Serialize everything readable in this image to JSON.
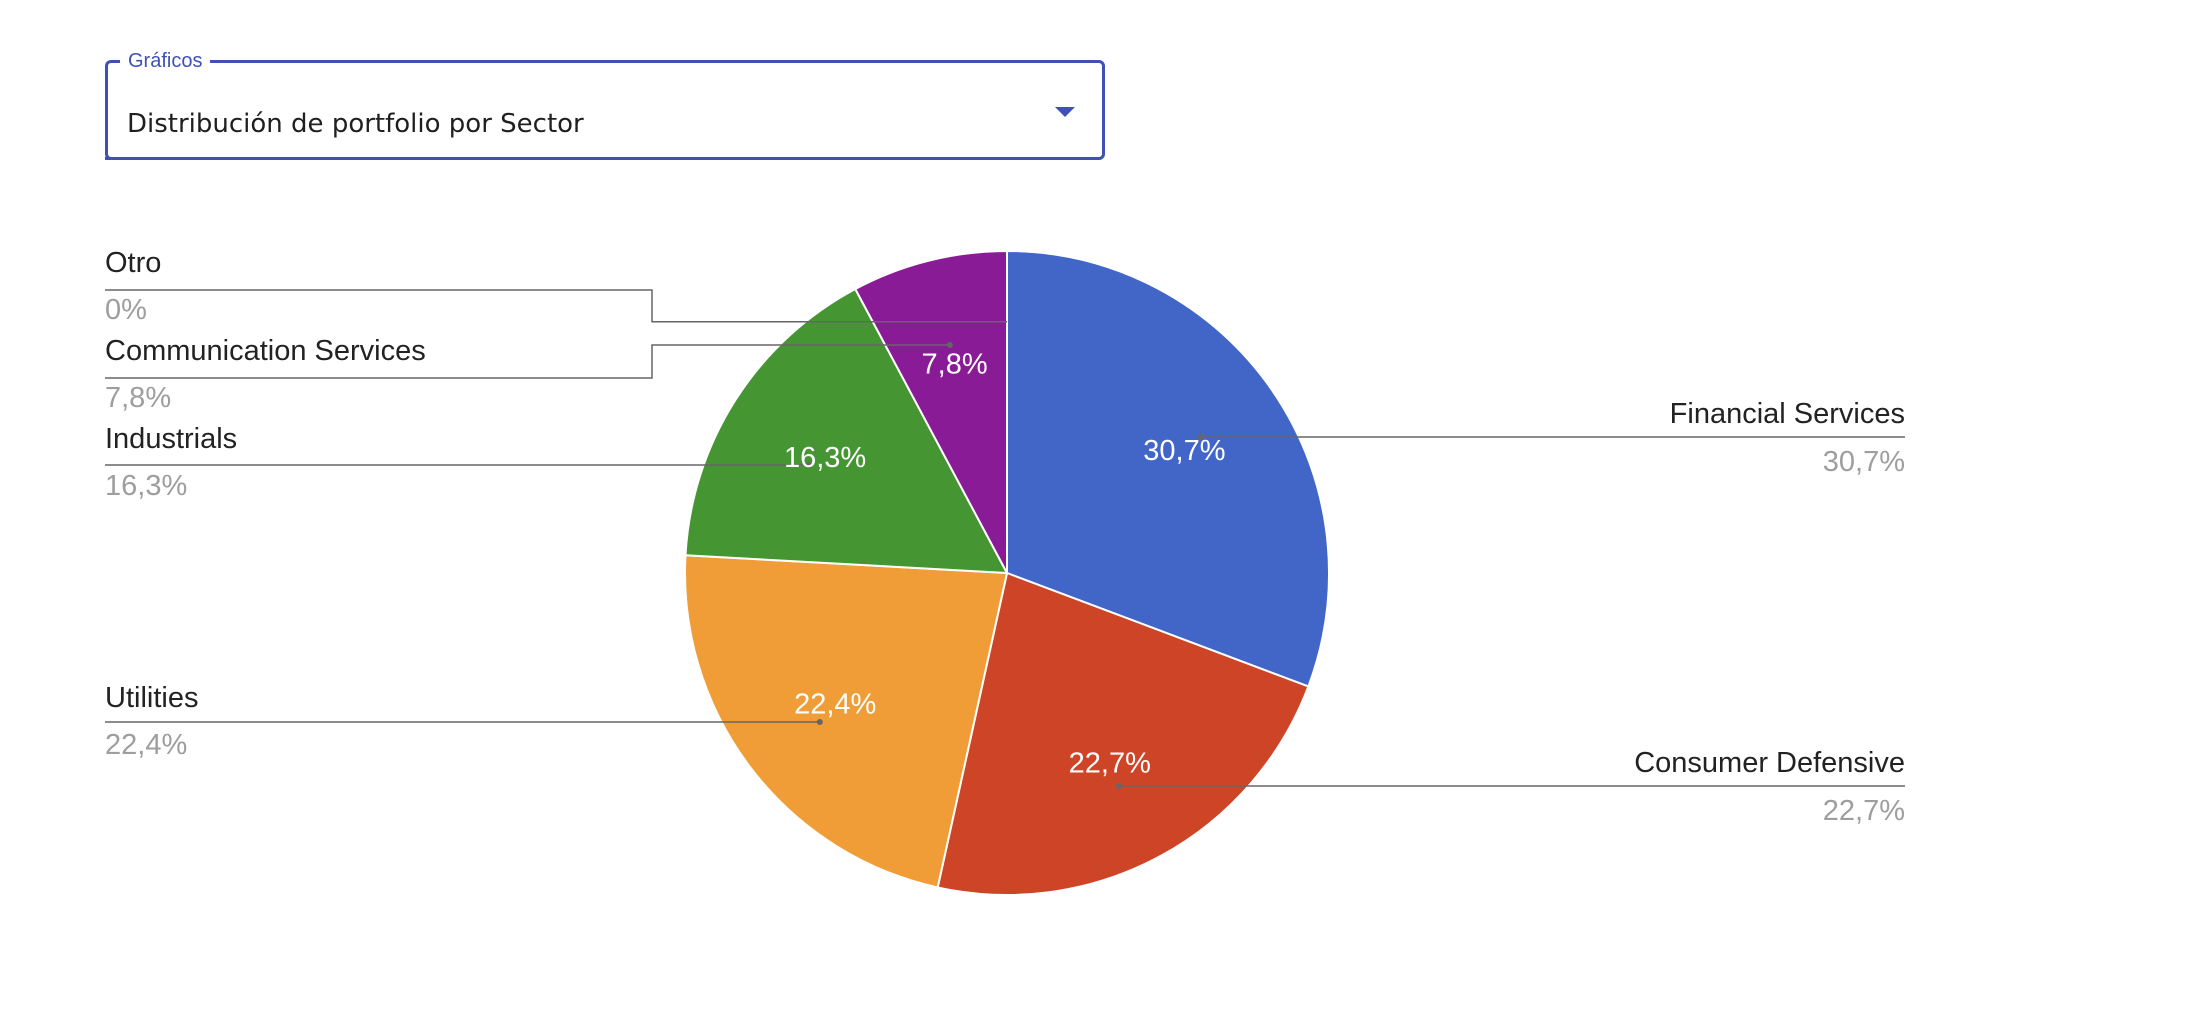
{
  "select": {
    "label": "Gráficos",
    "value": "Distribución de portfolio por Sector",
    "arrow_icon": "arrow-drop-down-icon",
    "accent_color": "#3f51b5"
  },
  "chart_data": {
    "type": "pie",
    "title": "",
    "start_angle_deg": 0,
    "direction": "clockwise",
    "slices": [
      {
        "label": "Financial Services",
        "value": 30.7,
        "value_label": "30,7%",
        "color": "#4166c8"
      },
      {
        "label": "Consumer Defensive",
        "value": 22.7,
        "value_label": "22,7%",
        "color": "#cd4426"
      },
      {
        "label": "Utilities",
        "value": 22.4,
        "value_label": "22,4%",
        "color": "#f09d37"
      },
      {
        "label": "Industrials",
        "value": 16.3,
        "value_label": "16,3%",
        "color": "#459632"
      },
      {
        "label": "Communication Services",
        "value": 7.8,
        "value_label": "7,8%",
        "color": "#8a1b97"
      },
      {
        "label": "Otro",
        "value": 0,
        "value_label": "0%",
        "color": "#8a1b97"
      }
    ]
  }
}
